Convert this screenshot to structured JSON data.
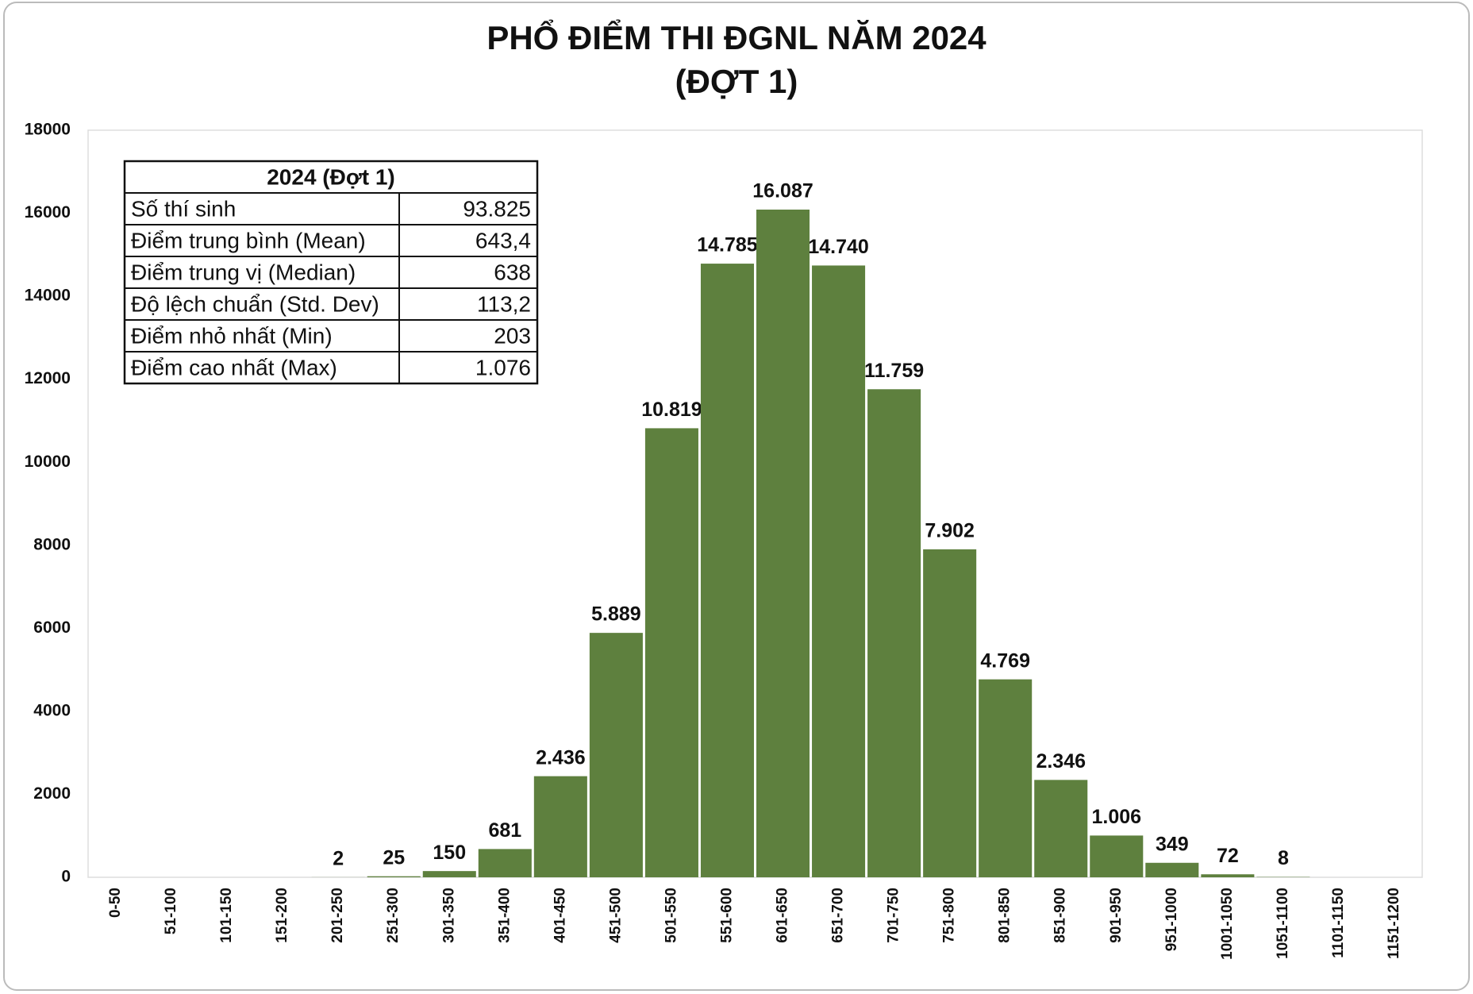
{
  "chart_data": {
    "type": "bar",
    "title": "PHỔ ĐIỂM THI ĐGNL NĂM 2024",
    "subtitle": "(ĐỢT 1)",
    "categories": [
      "0-50",
      "51-100",
      "101-150",
      "151-200",
      "201-250",
      "251-300",
      "301-350",
      "351-400",
      "401-450",
      "451-500",
      "501-550",
      "551-600",
      "601-650",
      "651-700",
      "701-750",
      "751-800",
      "801-850",
      "851-900",
      "901-950",
      "951-1000",
      "1001-1050",
      "1051-1100",
      "1101-1150",
      "1151-1200"
    ],
    "values": [
      0,
      0,
      0,
      0,
      2,
      25,
      150,
      681,
      2436,
      5889,
      10819,
      14785,
      16087,
      14740,
      11759,
      7902,
      4769,
      2346,
      1006,
      349,
      72,
      8,
      0,
      0
    ],
    "value_labels": [
      null,
      null,
      null,
      null,
      "2",
      "25",
      "150",
      "681",
      "2.436",
      "5.889",
      "10.819",
      "14.785",
      "16.087",
      "14.740",
      "11.759",
      "7.902",
      "4.769",
      "2.346",
      "1.006",
      "349",
      "72",
      "8",
      null,
      null
    ],
    "color": "#5e803e",
    "ylim": [
      0,
      18000
    ],
    "yticks": [
      0,
      2000,
      4000,
      6000,
      8000,
      10000,
      12000,
      14000,
      16000,
      18000
    ],
    "grid": false,
    "stats_table": {
      "title": "2024 (Đợt 1)",
      "rows": [
        [
          "Số thí sinh",
          "93.825"
        ],
        [
          "Điểm trung bình (Mean)",
          "643,4"
        ],
        [
          "Điểm trung vị (Median)",
          "638"
        ],
        [
          "Độ lệch chuẩn (Std. Dev)",
          "113,2"
        ],
        [
          "Điểm nhỏ nhất (Min)",
          "203"
        ],
        [
          "Điểm cao nhất (Max)",
          "1.076"
        ]
      ]
    }
  }
}
